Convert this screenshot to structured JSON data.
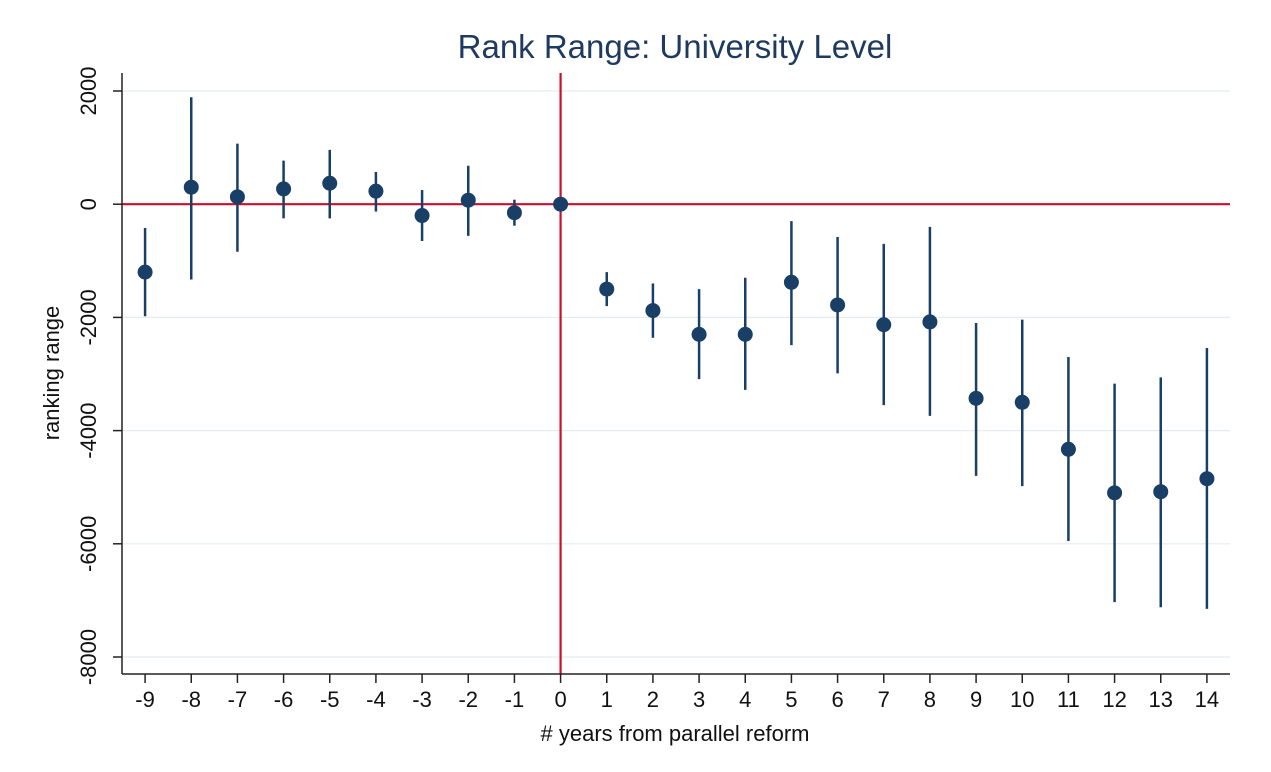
{
  "chart_data": {
    "type": "scatter",
    "title": "Rank Range: University Level",
    "xlabel": "# years from parallel reform",
    "ylabel": "ranking range",
    "xlim": [
      -9,
      14
    ],
    "ylim": [
      -8000,
      2000
    ],
    "xticks": [
      -9,
      -8,
      -7,
      -6,
      -5,
      -4,
      -3,
      -2,
      -1,
      0,
      1,
      2,
      3,
      4,
      5,
      6,
      7,
      8,
      9,
      10,
      11,
      12,
      13,
      14
    ],
    "yticks": [
      2000,
      0,
      -2000,
      -4000,
      -6000,
      -8000
    ],
    "ytick_labels": [
      "2000",
      "0",
      "-2000",
      "-4000",
      "-6000",
      "-8000"
    ],
    "grid": true,
    "reference_lines": {
      "x": 0,
      "y": 0
    },
    "colors": {
      "marker": "#1a3f66",
      "reference": "#c8102e",
      "grid": "#e3ecef",
      "title": "#1e3a5f"
    },
    "series": [
      {
        "x": [
          -9,
          -8,
          -7,
          -6,
          -5,
          -4,
          -3,
          -2,
          -1,
          0,
          1,
          2,
          3,
          4,
          5,
          6,
          7,
          8,
          9,
          10,
          11,
          12,
          13,
          14
        ],
        "y": [
          -1200,
          300,
          130,
          270,
          370,
          230,
          -200,
          70,
          -150,
          0,
          -1500,
          -1880,
          -2300,
          -2300,
          -1380,
          -1780,
          -2130,
          -2080,
          -3430,
          -3500,
          -4330,
          -5100,
          -5080,
          -4850
        ],
        "ci_low": [
          -1980,
          -1330,
          -840,
          -250,
          -250,
          -130,
          -650,
          -560,
          -380,
          0,
          -1800,
          -2360,
          -3090,
          -3280,
          -2490,
          -2990,
          -3550,
          -3740,
          -4800,
          -4980,
          -5950,
          -7030,
          -7120,
          -7150
        ],
        "ci_high": [
          -420,
          1890,
          1070,
          770,
          960,
          570,
          250,
          680,
          80,
          0,
          -1200,
          -1400,
          -1500,
          -1300,
          -300,
          -580,
          -700,
          -400,
          -2100,
          -2040,
          -2700,
          -3170,
          -3060,
          -2540
        ]
      }
    ]
  }
}
